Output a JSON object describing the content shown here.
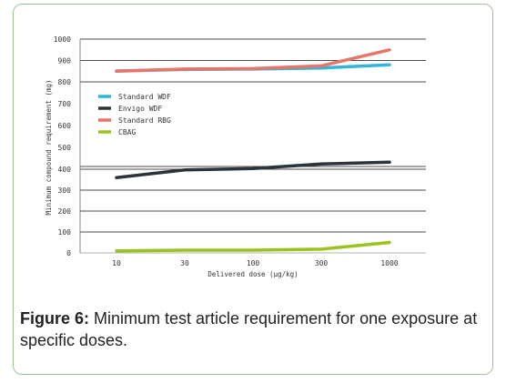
{
  "caption": {
    "label": "Figure 6:",
    "text": " Minimum test article requirement for one exposure at specific doses."
  },
  "chart_data": {
    "type": "line",
    "xlabel": "Delivered dose (μg/kg)",
    "ylabel": "Minimum compound requirement (mg)",
    "categories": [
      "10",
      "30",
      "100",
      "300",
      "1000"
    ],
    "y_ticks": [
      0,
      100,
      200,
      300,
      400,
      500,
      600,
      700,
      800,
      900,
      1000
    ],
    "ylim": [
      0,
      1000
    ],
    "axis_break": true,
    "grid_lines": [
      100,
      200,
      300,
      400,
      800,
      900,
      1000
    ],
    "legend_position": "left",
    "series": [
      {
        "name": "Standard WDF",
        "color": "#33b5d9",
        "values": [
          851,
          858,
          860,
          865,
          880
        ]
      },
      {
        "name": "Envigo WDF",
        "color": "#2a3439",
        "values": [
          360,
          397,
          403,
          424,
          432
        ]
      },
      {
        "name": "Standard RBG",
        "color": "#e8756a",
        "values": [
          850,
          860,
          862,
          875,
          950
        ]
      },
      {
        "name": "CBAG",
        "color": "#9bc31d",
        "values": [
          10,
          13,
          13,
          18,
          50
        ]
      }
    ]
  }
}
